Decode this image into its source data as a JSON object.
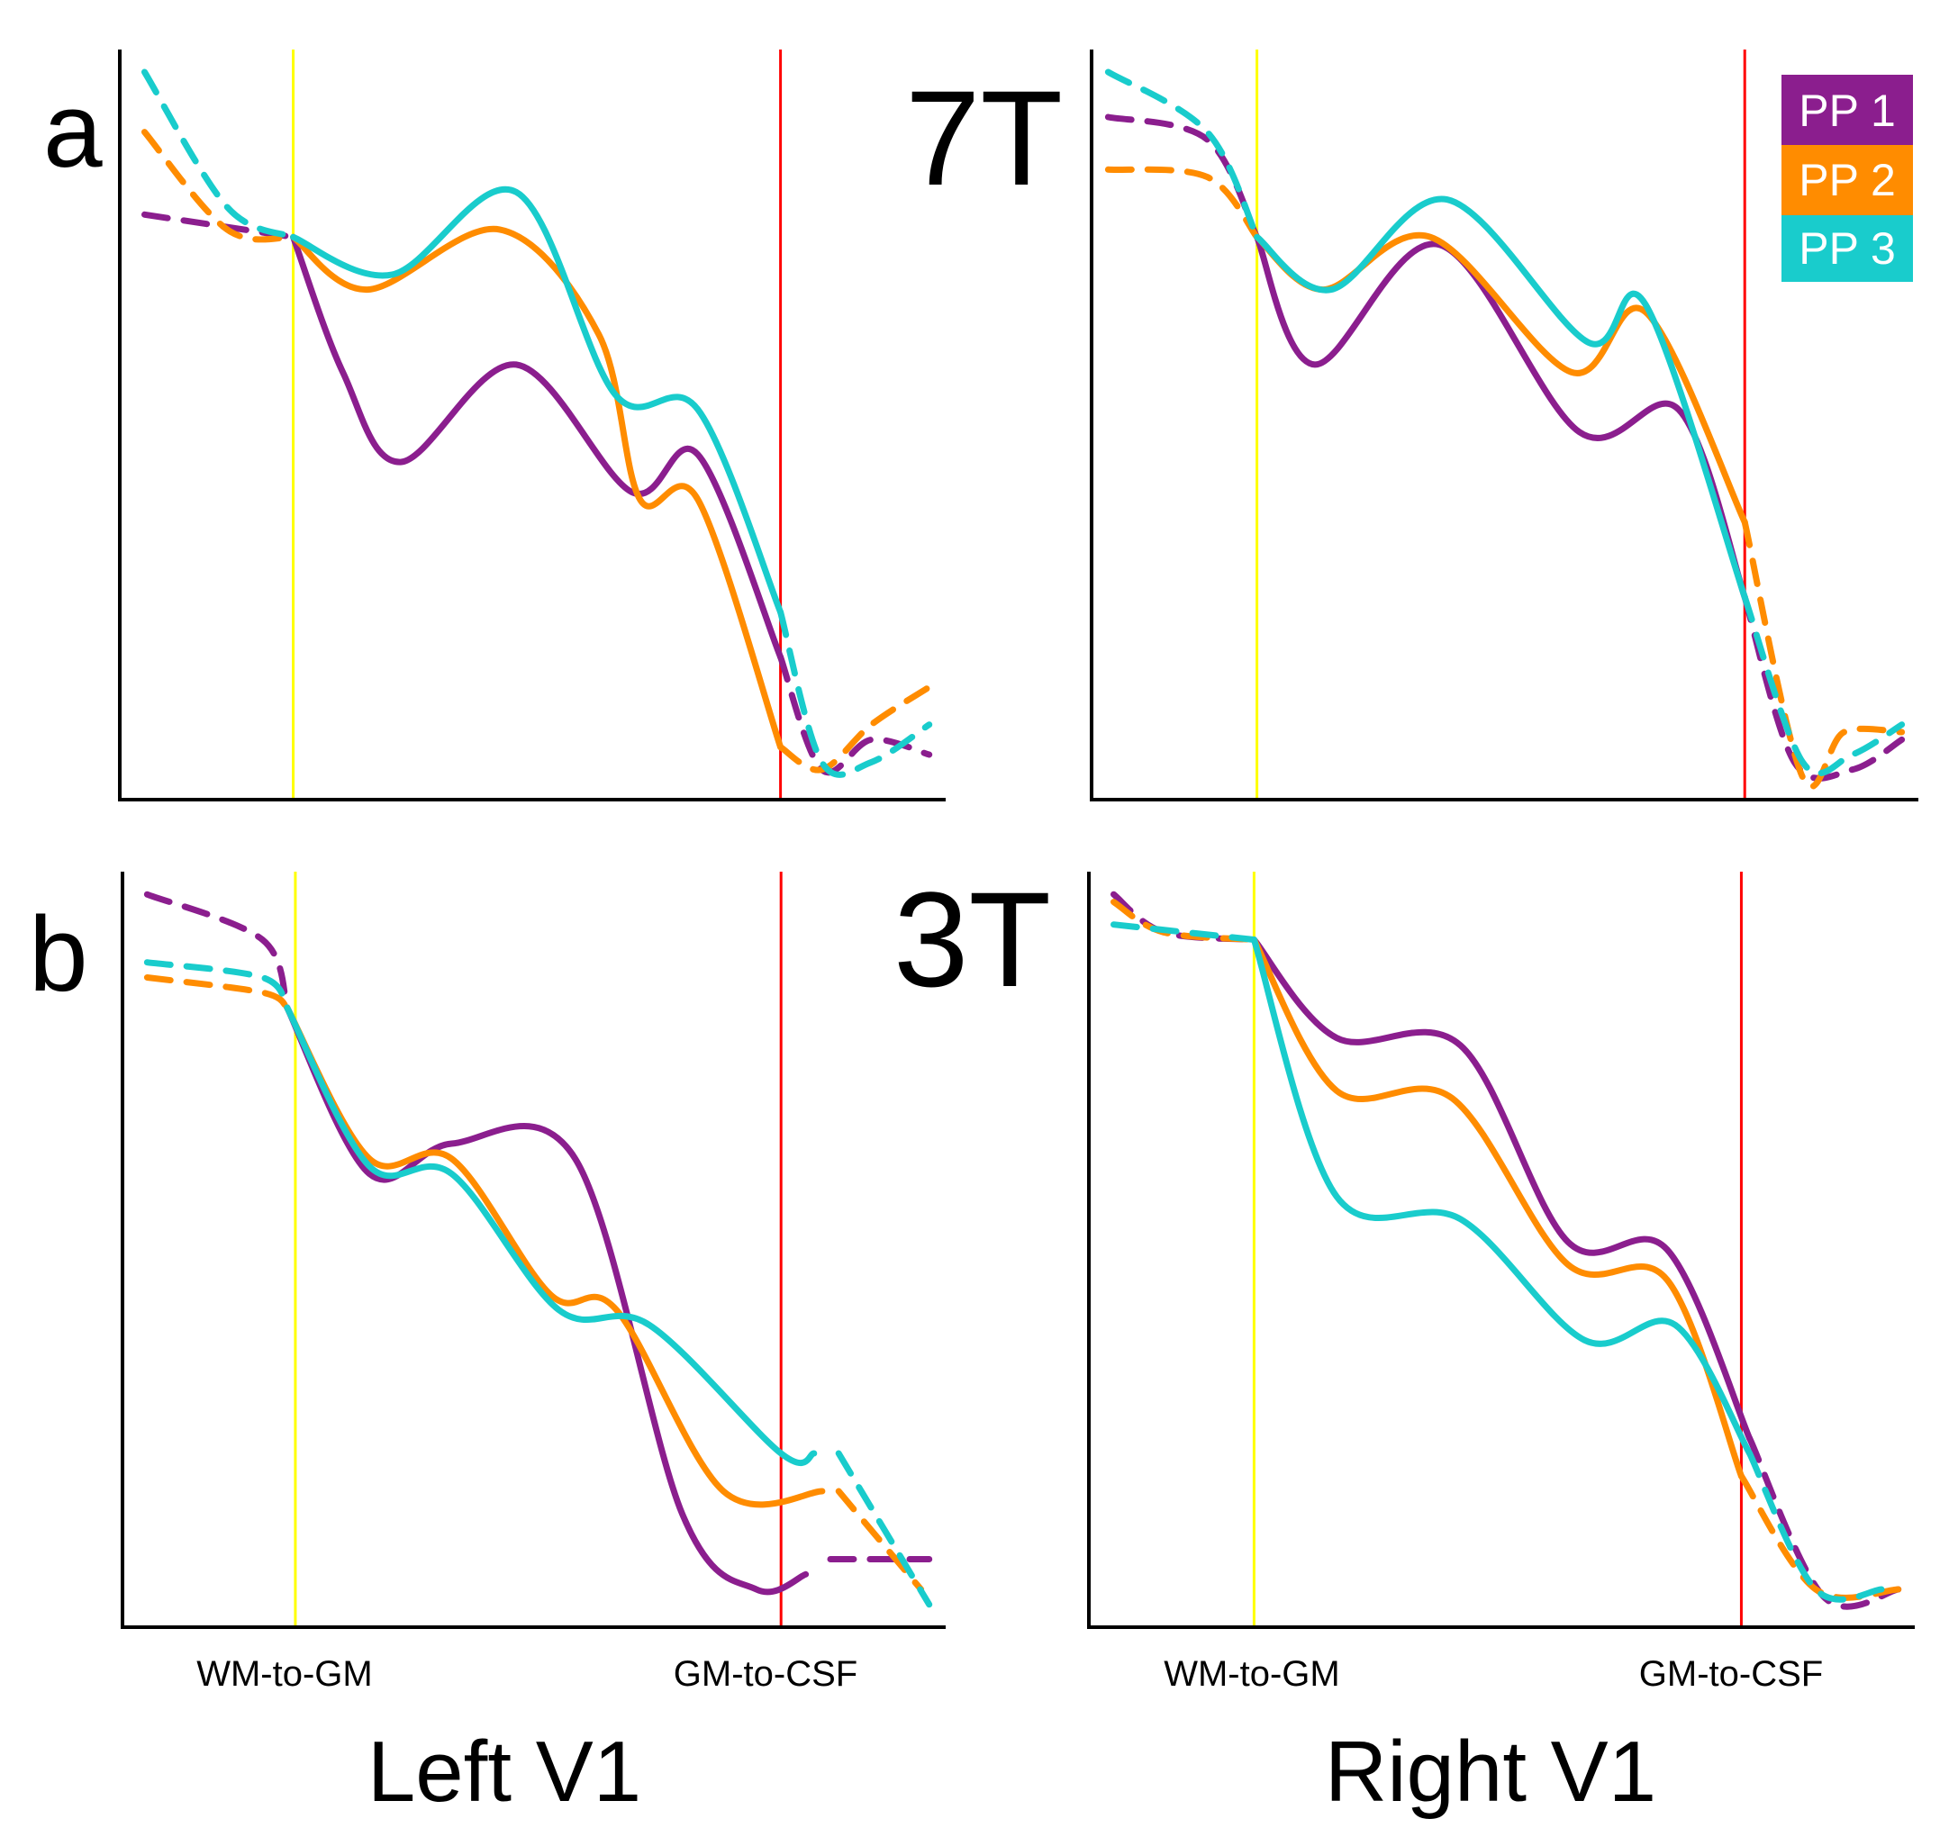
{
  "figure": {
    "row_a_label": "a",
    "row_b_label": "b",
    "row_a_field": "7T",
    "row_b_field": "3T",
    "left_column_title": "Left V1",
    "right_column_title": "Right V1",
    "x_tick_left": "WM-to-GM",
    "x_tick_right": "GM-to-CSF"
  },
  "legend": [
    {
      "label": "PP 1",
      "color": "#8b1e8e"
    },
    {
      "label": "PP 2",
      "color": "#ff8c00"
    },
    {
      "label": "PP 3",
      "color": "#19cccc"
    }
  ],
  "colors": {
    "wm_gm_boundary": "#ffff00",
    "gm_csf_boundary": "#ff0000",
    "axis": "#000000"
  },
  "chart_data": [
    {
      "type": "line",
      "panel": "a-left",
      "field": "7T",
      "hemisphere": "Left V1",
      "xlim": [
        0,
        100
      ],
      "ylim": [
        0,
        100
      ],
      "x_boundaries": {
        "WM-to-GM": 21,
        "GM-to-CSF": 80
      },
      "series": [
        {
          "name": "PP 1",
          "dashed_start": [
            [
              3,
              78
            ],
            [
              21,
              75
            ]
          ],
          "solid": [
            [
              21,
              75
            ],
            [
              27,
              57
            ],
            [
              34,
              45
            ],
            [
              48,
              58
            ],
            [
              62,
              41
            ],
            [
              70,
              46
            ],
            [
              80,
              19
            ]
          ],
          "dashed_end": [
            [
              80,
              19
            ],
            [
              85,
              4
            ],
            [
              91,
              8
            ],
            [
              98,
              6
            ]
          ]
        },
        {
          "name": "PP 2",
          "dashed_start": [
            [
              3,
              89
            ],
            [
              13,
              76
            ],
            [
              21,
              75
            ]
          ],
          "solid": [
            [
              21,
              75
            ],
            [
              30,
              68
            ],
            [
              46,
              76
            ],
            [
              58,
              62
            ],
            [
              63,
              40
            ],
            [
              70,
              40
            ],
            [
              80,
              7
            ]
          ],
          "dashed_end": [
            [
              80,
              7
            ],
            [
              85,
              4
            ],
            [
              91,
              10
            ],
            [
              98,
              15
            ]
          ]
        },
        {
          "name": "PP 3",
          "dashed_start": [
            [
              3,
              97
            ],
            [
              13,
              79
            ],
            [
              21,
              75
            ]
          ],
          "solid": [
            [
              21,
              75
            ],
            [
              33,
              70
            ],
            [
              48,
              81
            ],
            [
              60,
              54
            ],
            [
              70,
              52
            ],
            [
              80,
              25
            ]
          ],
          "dashed_end": [
            [
              80,
              25
            ],
            [
              85,
              5
            ],
            [
              91,
              5
            ],
            [
              98,
              10
            ]
          ]
        }
      ]
    },
    {
      "type": "line",
      "panel": "a-right",
      "field": "7T",
      "hemisphere": "Right V1",
      "xlim": [
        0,
        100
      ],
      "ylim": [
        0,
        100
      ],
      "x_boundaries": {
        "WM-to-GM": 20,
        "GM-to-CSF": 79
      },
      "series": [
        {
          "name": "PP 1",
          "dashed_start": [
            [
              2,
              91
            ],
            [
              14,
              88
            ],
            [
              20,
              75
            ]
          ],
          "solid": [
            [
              20,
              75
            ],
            [
              27,
              58
            ],
            [
              42,
              74
            ],
            [
              59,
              49
            ],
            [
              71,
              52
            ],
            [
              79,
              27
            ]
          ],
          "dashed_end": [
            [
              79,
              27
            ],
            [
              85,
              5
            ],
            [
              92,
              4
            ],
            [
              98,
              8
            ]
          ]
        },
        {
          "name": "PP 2",
          "dashed_start": [
            [
              2,
              84
            ],
            [
              14,
              83
            ],
            [
              20,
              75
            ]
          ],
          "solid": [
            [
              20,
              75
            ],
            [
              28,
              68
            ],
            [
              41,
              75
            ],
            [
              58,
              57
            ],
            [
              67,
              65
            ],
            [
              79,
              37
            ]
          ],
          "dashed_end": [
            [
              79,
              37
            ],
            [
              86,
              3
            ],
            [
              91,
              9
            ],
            [
              98,
              9
            ]
          ]
        },
        {
          "name": "PP 3",
          "dashed_start": [
            [
              2,
              97
            ],
            [
              14,
              89
            ],
            [
              20,
              75
            ]
          ],
          "solid": [
            [
              20,
              75
            ],
            [
              29,
              68
            ],
            [
              43,
              80
            ],
            [
              60,
              61
            ],
            [
              67,
              66
            ],
            [
              79,
              27
            ]
          ],
          "dashed_end": [
            [
              79,
              27
            ],
            [
              86,
              5
            ],
            [
              92,
              6
            ],
            [
              98,
              10
            ]
          ]
        }
      ]
    },
    {
      "type": "line",
      "panel": "b-left",
      "field": "3T",
      "hemisphere": "Left V1",
      "xlim": [
        0,
        100
      ],
      "ylim": [
        0,
        100
      ],
      "x_boundaries": {
        "WM-to-GM": 21,
        "GM-to-CSF": 80
      },
      "series": [
        {
          "name": "PP 1",
          "dashed_start": [
            [
              3,
              97
            ],
            [
              17,
              91
            ],
            [
              20,
              82
            ]
          ],
          "solid": [
            [
              20,
              82
            ],
            [
              30,
              60
            ],
            [
              40,
              64
            ],
            [
              55,
              62
            ],
            [
              68,
              15
            ],
            [
              77,
              5
            ],
            [
              83,
              7
            ]
          ],
          "dashed_end": [
            [
              86,
              9
            ],
            [
              98,
              9
            ]
          ]
        },
        {
          "name": "PP 2",
          "dashed_start": [
            [
              3,
              86
            ],
            [
              17,
              84
            ],
            [
              20,
              82
            ]
          ],
          "solid": [
            [
              20,
              82
            ],
            [
              30,
              62
            ],
            [
              40,
              62
            ],
            [
              52,
              44
            ],
            [
              60,
              42
            ],
            [
              73,
              18
            ],
            [
              85,
              18
            ]
          ],
          "dashed_end": [
            [
              87,
              18
            ],
            [
              97,
              5
            ]
          ]
        },
        {
          "name": "PP 3",
          "dashed_start": [
            [
              3,
              88
            ],
            [
              17,
              86
            ],
            [
              20,
              82
            ]
          ],
          "solid": [
            [
              20,
              82
            ],
            [
              30,
              61
            ],
            [
              40,
              60
            ],
            [
              53,
              42
            ],
            [
              64,
              40
            ],
            [
              80,
              23
            ],
            [
              84,
              23
            ]
          ],
          "dashed_end": [
            [
              87,
              23
            ],
            [
              98,
              3
            ]
          ]
        }
      ]
    },
    {
      "type": "line",
      "panel": "b-right",
      "field": "3T",
      "hemisphere": "Right V1",
      "xlim": [
        0,
        100
      ],
      "ylim": [
        0,
        100
      ],
      "x_boundaries": {
        "WM-to-GM": 20,
        "GM-to-CSF": 79
      },
      "series": [
        {
          "name": "PP 1",
          "dashed_start": [
            [
              3,
              97
            ],
            [
              9,
              92
            ],
            [
              20,
              91
            ]
          ],
          "solid": [
            [
              20,
              91
            ],
            [
              30,
              78
            ],
            [
              45,
              77
            ],
            [
              58,
              51
            ],
            [
              70,
              50
            ],
            [
              80,
              25
            ]
          ],
          "dashed_end": [
            [
              80,
              25
            ],
            [
              89,
              4
            ],
            [
              98,
              5
            ]
          ]
        },
        {
          "name": "PP 2",
          "dashed_start": [
            [
              3,
              96
            ],
            [
              9,
              92
            ],
            [
              20,
              91
            ]
          ],
          "solid": [
            [
              20,
              91
            ],
            [
              30,
              71
            ],
            [
              44,
              70
            ],
            [
              58,
              48
            ],
            [
              70,
              46
            ],
            [
              79,
              20
            ]
          ],
          "dashed_end": [
            [
              79,
              20
            ],
            [
              88,
              5
            ],
            [
              98,
              5
            ]
          ]
        },
        {
          "name": "PP 3",
          "dashed_start": [
            [
              3,
              93
            ],
            [
              20,
              91
            ]
          ],
          "solid": [
            [
              20,
              91
            ],
            [
              30,
              57
            ],
            [
              45,
              54
            ],
            [
              60,
              38
            ],
            [
              71,
              40
            ],
            [
              80,
              23
            ]
          ],
          "dashed_end": [
            [
              80,
              23
            ],
            [
              88,
              5
            ],
            [
              96,
              5
            ]
          ]
        }
      ]
    }
  ]
}
